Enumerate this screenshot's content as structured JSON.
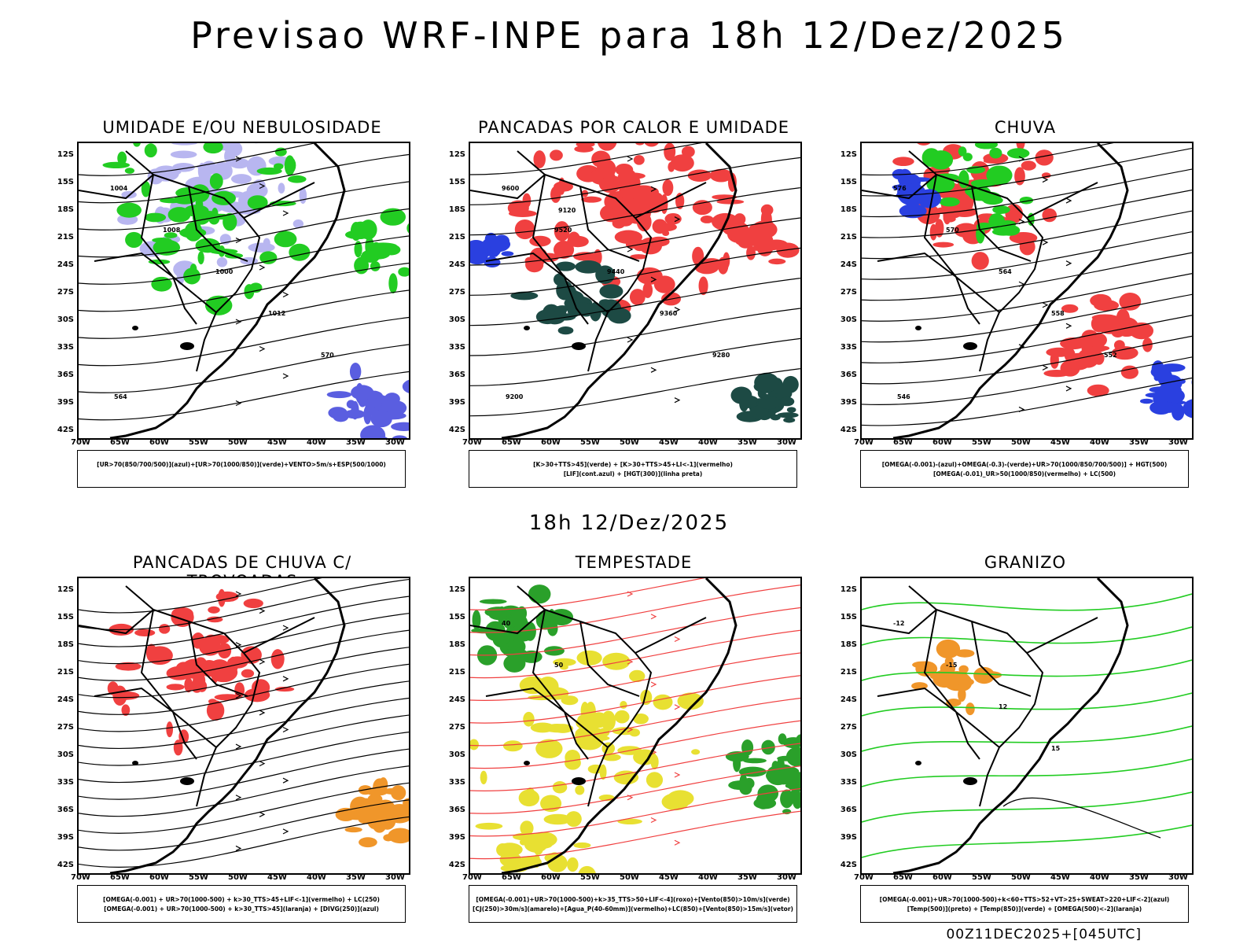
{
  "header": {
    "main_title": "Previsao WRF-INPE  para 18h 12/Dez/2025",
    "mid_title": "18h 12/Dez/2025"
  },
  "axes": {
    "lat_labels": [
      "12S",
      "15S",
      "18S",
      "21S",
      "24S",
      "27S",
      "30S",
      "33S",
      "36S",
      "39S",
      "42S"
    ],
    "lon_labels": [
      "70W",
      "65W",
      "60W",
      "55W",
      "50W",
      "45W",
      "40W",
      "35W",
      "30W"
    ]
  },
  "colors": {
    "blue_fill": "#b8b6f0",
    "green_line": "#22cc22",
    "red_fill": "#f04040",
    "dark_teal": "#1d4a44",
    "yellow_fill": "#e8e032",
    "orange_fill": "#f0962a",
    "blue_line": "#2a40e0"
  },
  "panels": [
    {
      "title": "UMIDADE E/OU NEBULOSIDADE",
      "legend": [
        "[UR>70(850/700/500)](azul)+[UR>70(1000/850)](verde)+VENTO>5m/s+ESP(500/1000)"
      ],
      "contour_labels": [
        "1004",
        "1008",
        "1000",
        "1012",
        "570",
        "564"
      ]
    },
    {
      "title": "PANCADAS POR CALOR E UMIDADE",
      "legend": [
        "[K>30+TTS>45](verde) + [K>30+TTS>45+LI<-1](vermelho)",
        "[LIF](cont.azul) + [HGT(300)](linha preta)"
      ],
      "contour_labels": [
        "9600",
        "9520",
        "9440",
        "9360",
        "9280",
        "9200",
        "9120"
      ]
    },
    {
      "title": "CHUVA",
      "legend": [
        "[OMEGA(-0.001)-(azul)+OMEGA(-0.3)-(verde)+UR>70(1000/850/700/500)] + HGT(500)",
        "[OMEGA(-0.01)_UR>50(1000/850)(vermelho) + LC(500)"
      ],
      "contour_labels": [
        "576",
        "570",
        "564",
        "558",
        "552",
        "546"
      ]
    },
    {
      "title": "PANCADAS DE CHUVA C/ TROVOADAS",
      "legend": [
        "[OMEGA(-0.001) + UR>70(1000-500) + k>30_TTS>45+LIF<-1](vermelho) + LC(250)",
        "[OMEGA(-0.001) + UR>70(1000-500) + k>30_TTS>45](laranja) + [DIVG(250)](azul)"
      ],
      "contour_labels": []
    },
    {
      "title": "TEMPESTADE",
      "legend": [
        "[OMEGA(-0.001)+UR>70(1000-500)+k>35_TTS>50+LIF<-4](roxo)+[Vento(850)>10m/s](verde)",
        "[CJ(250)>30m/s](amarelo)+[Agua_P(40-60mm)](vermelho)+LC(850)+[Vento(850)>15m/s](vetor)"
      ],
      "contour_labels": [
        "40",
        "50"
      ]
    },
    {
      "title": "GRANIZO",
      "legend": [
        "[OMEGA(-0.001)+UR>70(1000-500)+k<60+TTS>52+VT>25+SWEAT>220+LIF<-2](azul)",
        "[Temp(500)](preto) + [Temp(850)](verde) + [OMEGA(500)<-2](laranja)"
      ],
      "contour_labels": [
        "-12",
        "-15",
        "12",
        "15"
      ]
    }
  ],
  "footer": "00Z11DEC2025+[045UTC]"
}
